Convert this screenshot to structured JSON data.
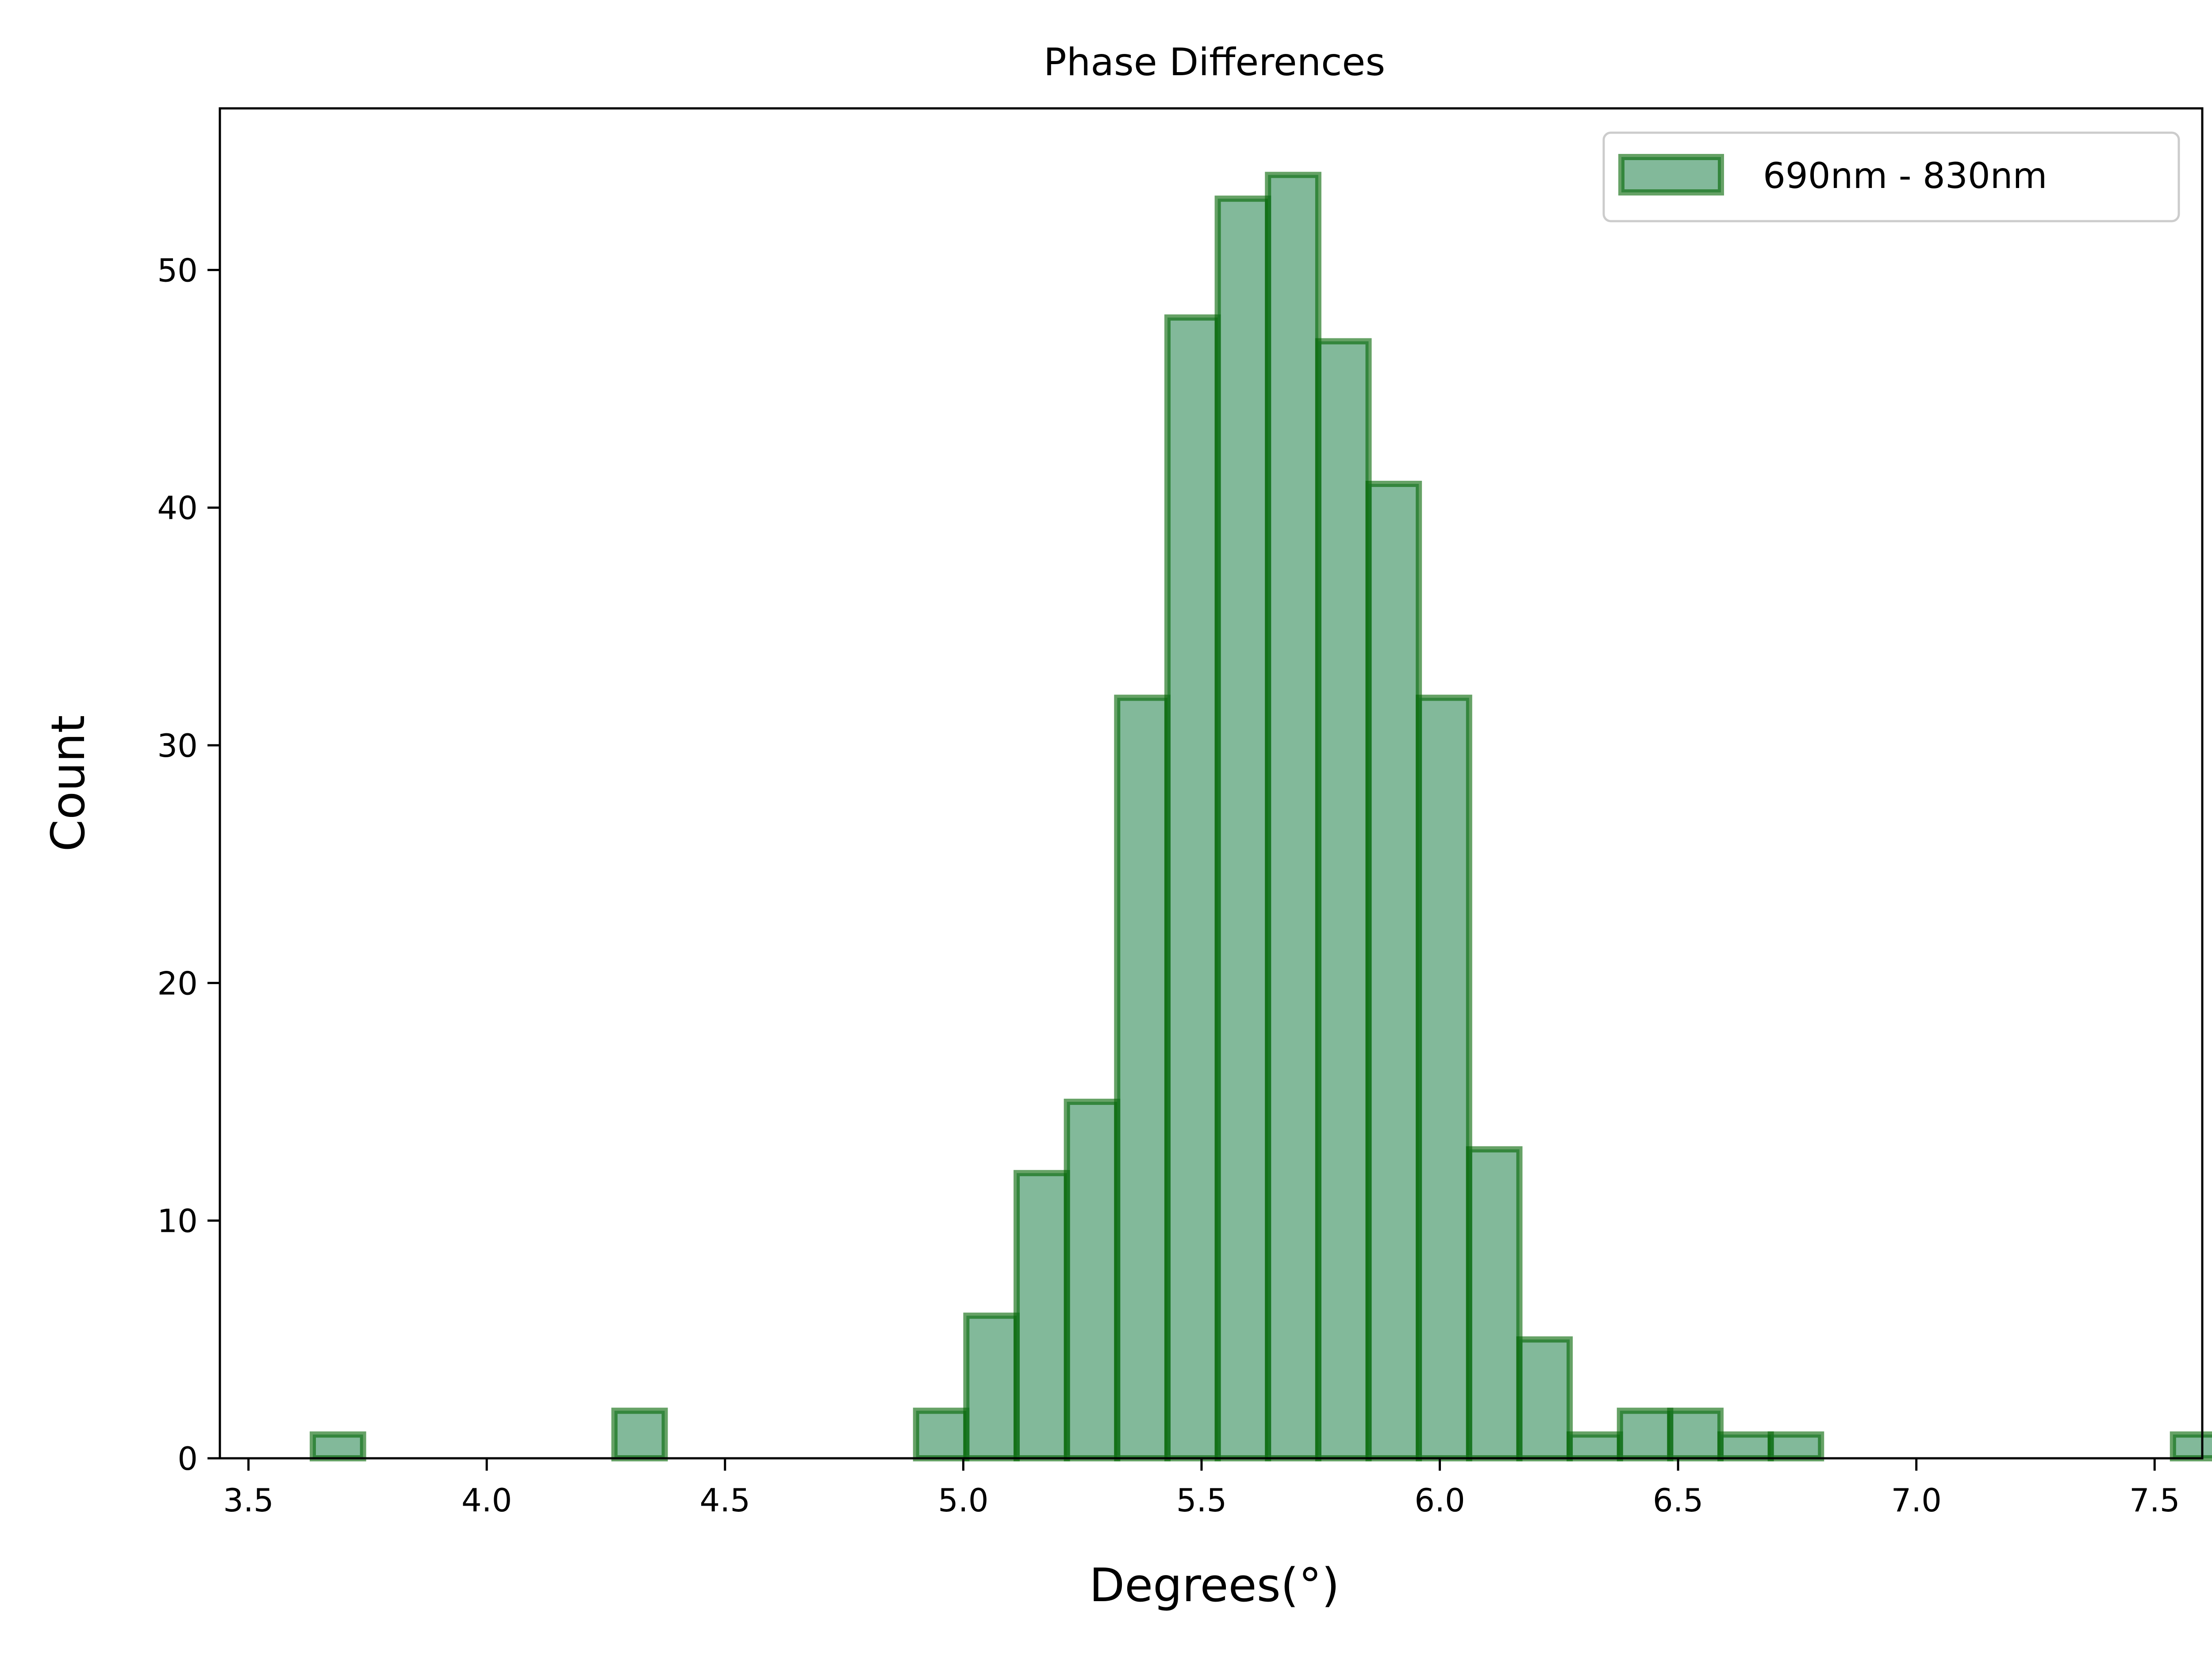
{
  "chart_data": {
    "type": "bar",
    "title": "Phase Differences",
    "xlabel": "Degrees(°)",
    "ylabel": "Count",
    "xlim": [
      3.44,
      7.6
    ],
    "ylim": [
      0,
      56.8
    ],
    "xticks": [
      "3.5",
      "4.0",
      "4.5",
      "5.0",
      "5.5",
      "6.0",
      "6.5",
      "7.0",
      "7.5"
    ],
    "yticks": [
      "0",
      "10",
      "20",
      "30",
      "40",
      "50"
    ],
    "bin_start": 3.635,
    "bin_width": 0.1055,
    "series": [
      {
        "name": "690nm - 830nm",
        "values": [
          1,
          0,
          0,
          0,
          0,
          0,
          2,
          0,
          0,
          0,
          0,
          0,
          2,
          6,
          12,
          15,
          32,
          48,
          53,
          54,
          47,
          41,
          32,
          13,
          5,
          1,
          2,
          2,
          1,
          1,
          0,
          0,
          0,
          0,
          0,
          0,
          0,
          1
        ]
      }
    ],
    "legend_position": "top-right",
    "grid": false,
    "colors": {
      "fill": "#2e8b57",
      "edge": "#006400"
    }
  }
}
